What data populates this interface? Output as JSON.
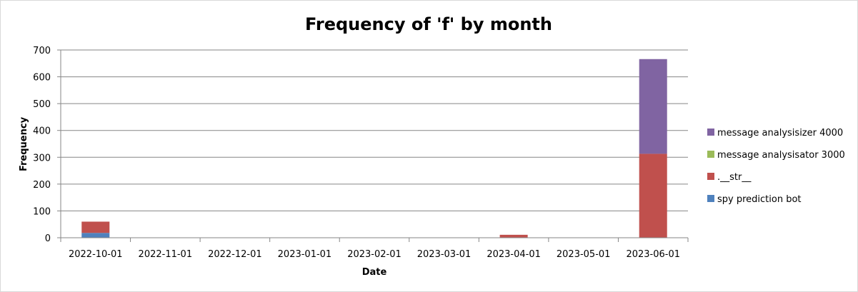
{
  "chart_data": {
    "type": "bar",
    "stacked": true,
    "title": "Frequency of 'f' by month",
    "xlabel": "Date",
    "ylabel": "Frequency",
    "ylim": [
      0,
      700
    ],
    "yticks": [
      0,
      100,
      200,
      300,
      400,
      500,
      600,
      700
    ],
    "grid": true,
    "legend_position": "right",
    "categories": [
      "2022-10-01",
      "2022-11-01",
      "2022-12-01",
      "2023-01-01",
      "2023-02-01",
      "2023-03-01",
      "2023-04-01",
      "2023-05-01",
      "2023-06-01"
    ],
    "series": [
      {
        "name": "spy prediction bot",
        "color": "#4F81BD",
        "values": [
          18,
          0,
          0,
          0,
          0,
          0,
          0,
          0,
          0
        ]
      },
      {
        "name": ".__str__",
        "color": "#C0504D",
        "values": [
          42,
          0,
          0,
          0,
          0,
          0,
          11,
          0,
          313
        ]
      },
      {
        "name": "message analysisator 3000",
        "color": "#9BBB59",
        "values": [
          0,
          0,
          0,
          0,
          0,
          0,
          0,
          0,
          0
        ]
      },
      {
        "name": "message analysisizer 4000",
        "color": "#8064A2",
        "values": [
          0,
          0,
          0,
          0,
          0,
          0,
          0,
          0,
          353
        ]
      }
    ]
  }
}
